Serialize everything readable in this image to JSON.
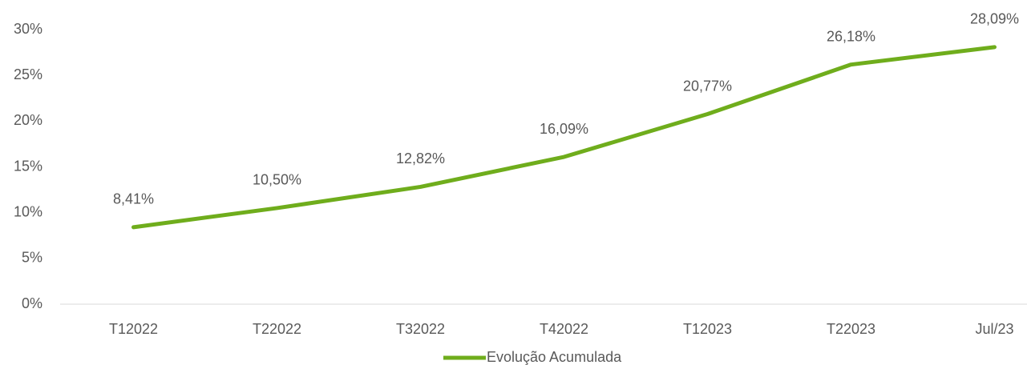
{
  "chart_data": {
    "type": "line",
    "categories": [
      "T12022",
      "T22022",
      "T32022",
      "T42022",
      "T12023",
      "T22023",
      "Jul/23"
    ],
    "series": [
      {
        "name": "Evolução Acumulada",
        "color": "#6fad1c",
        "values": [
          8.41,
          10.5,
          12.82,
          16.09,
          20.77,
          26.18,
          28.09
        ],
        "value_labels": [
          "8,41%",
          "10,50%",
          "12,82%",
          "16,09%",
          "20,77%",
          "26,18%",
          "28,09%"
        ]
      }
    ],
    "ylim": [
      0,
      30
    ],
    "yticks": [
      {
        "value": 0,
        "label": "0%"
      },
      {
        "value": 5,
        "label": "5%"
      },
      {
        "value": 10,
        "label": "10%"
      },
      {
        "value": 15,
        "label": "15%"
      },
      {
        "value": 20,
        "label": "20%"
      },
      {
        "value": 25,
        "label": "25%"
      },
      {
        "value": 30,
        "label": "30%"
      }
    ],
    "legend": "bottom"
  }
}
